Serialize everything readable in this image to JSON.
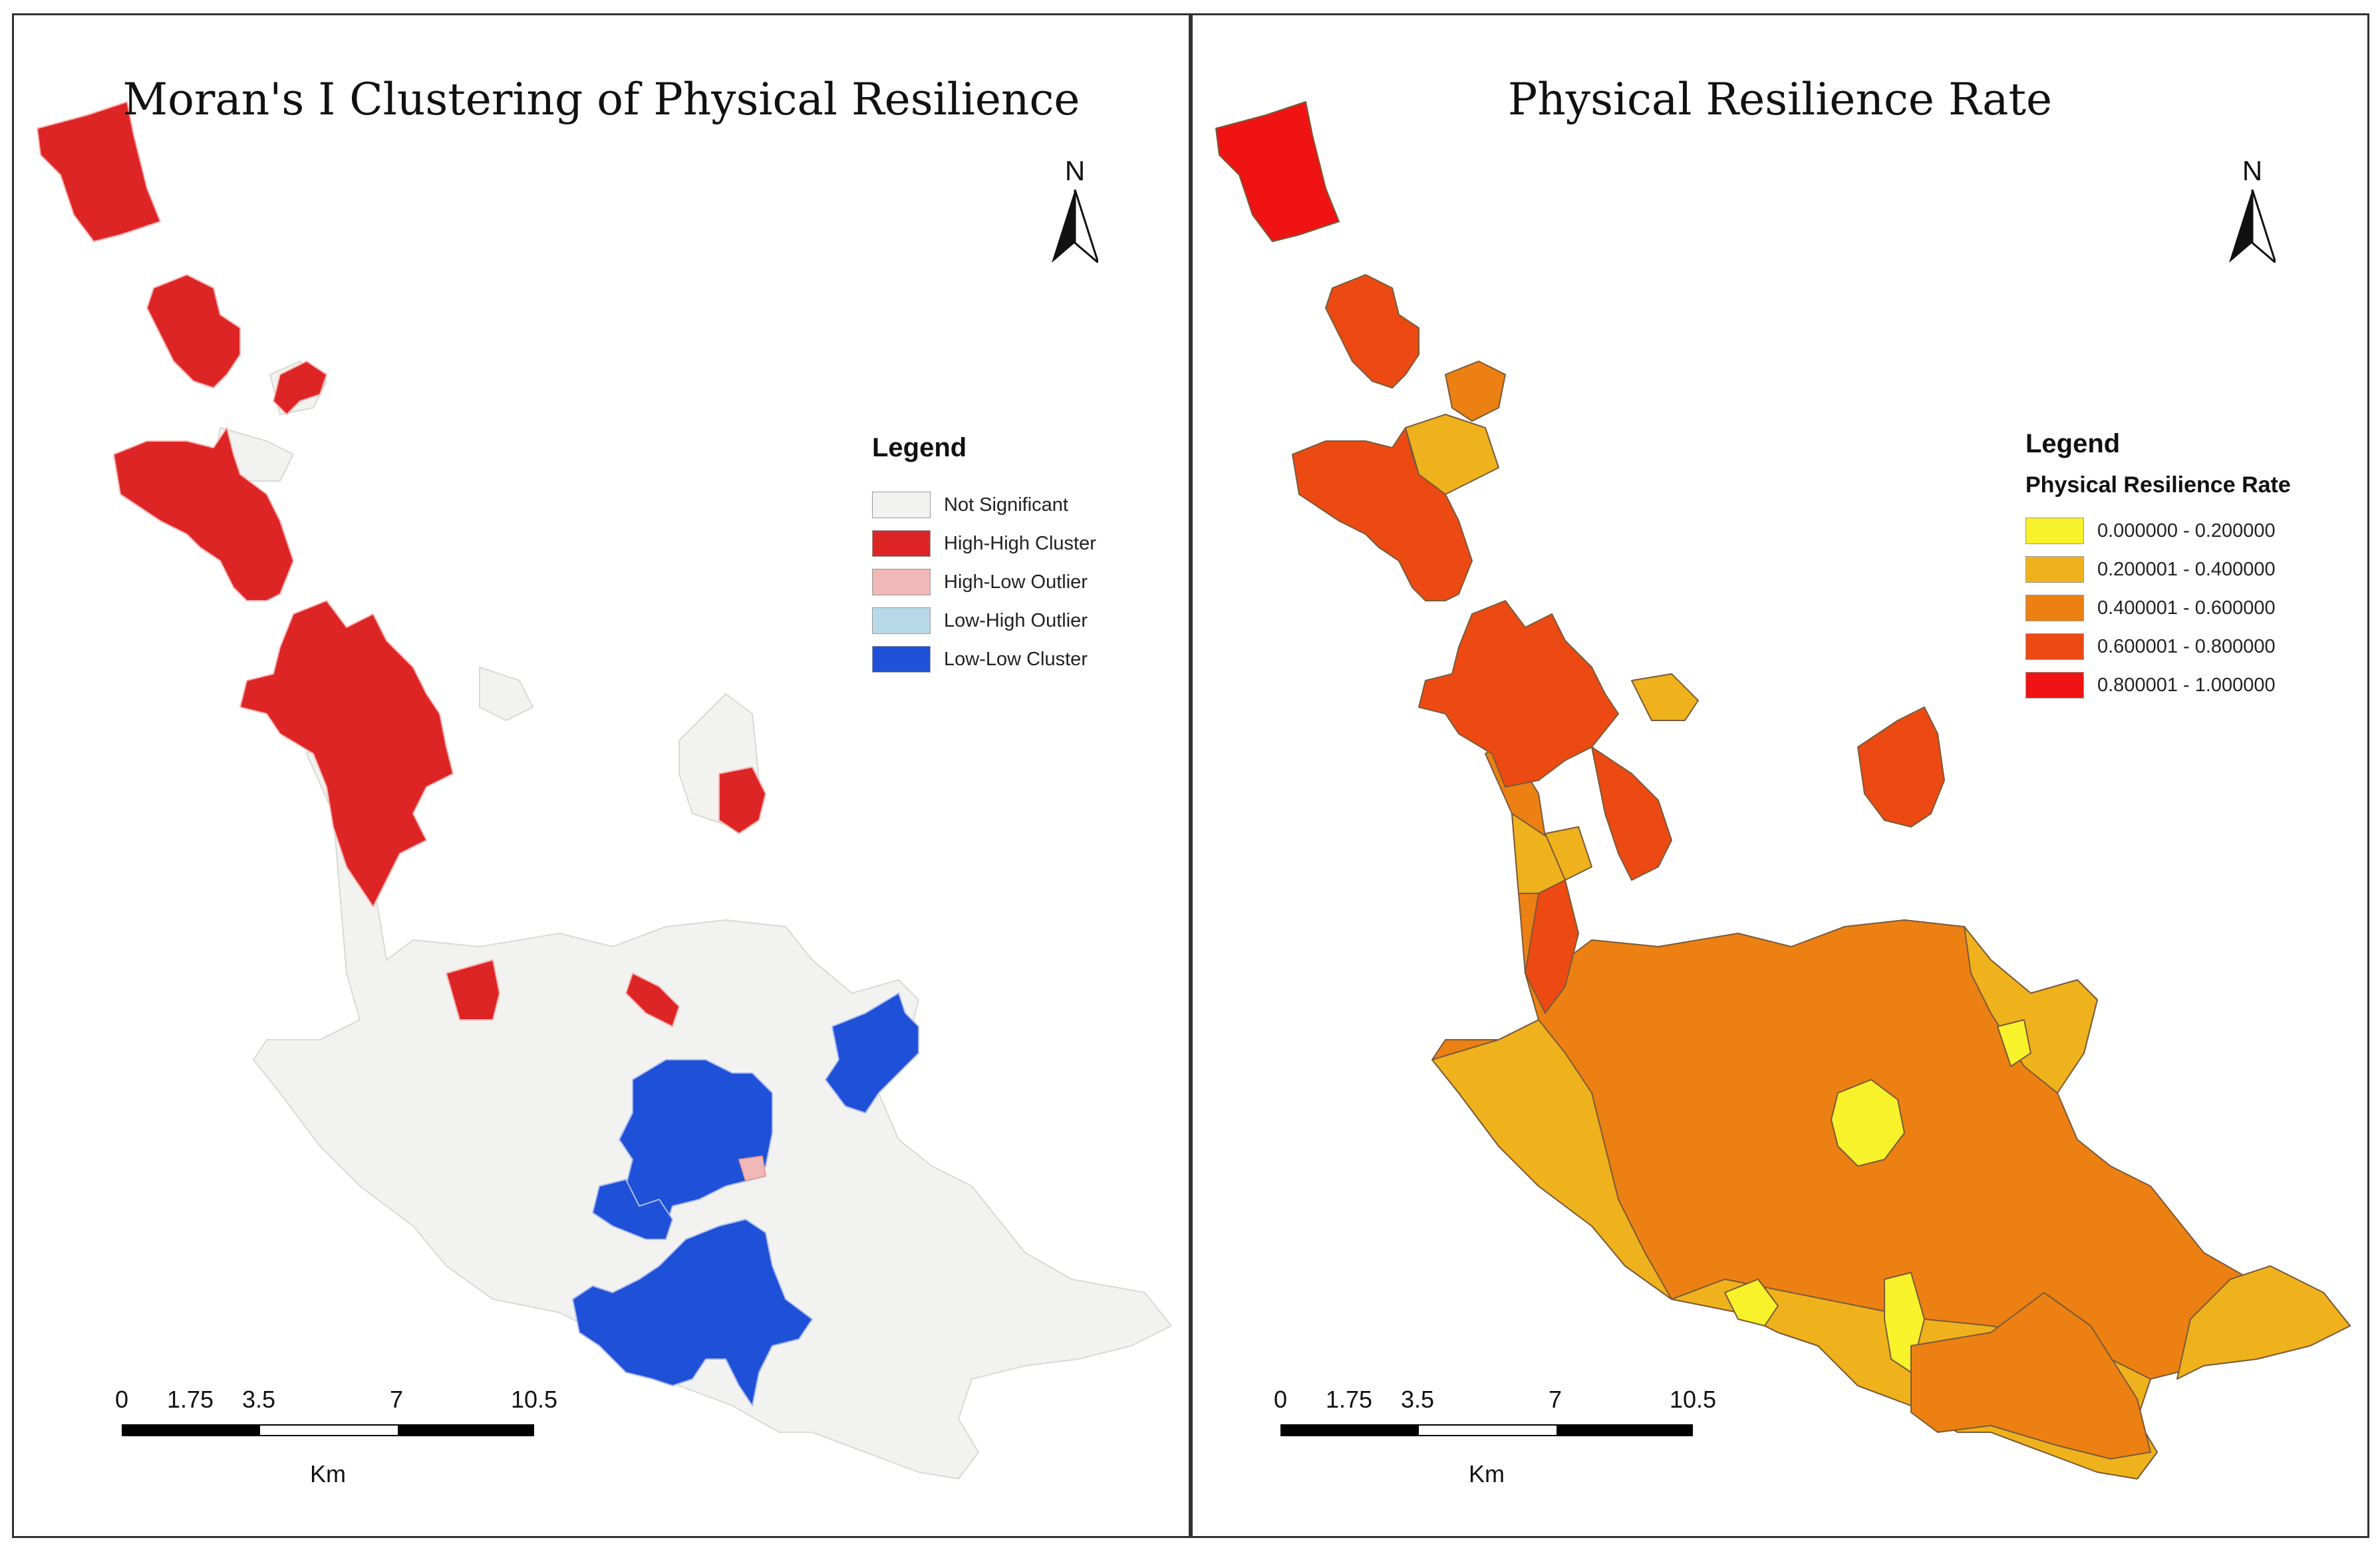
{
  "left_map": {
    "title": "Moran's I Clustering of Physical Resilience",
    "north_label": "N",
    "legend": {
      "title": "Legend",
      "items": [
        {
          "label": "Not Significant",
          "color": "#f2f2f0"
        },
        {
          "label": "High-High Cluster",
          "color": "#de2525"
        },
        {
          "label": "High-Low Outlier",
          "color": "#f0b8b6"
        },
        {
          "label": "Low-High Outlier",
          "color": "#b7d9e8"
        },
        {
          "label": "Low-Low Cluster",
          "color": "#1f50d8"
        }
      ]
    },
    "scale": {
      "ticks": [
        "0",
        "1.75",
        "3.5",
        "7",
        "10.5"
      ],
      "unit": "Km"
    }
  },
  "right_map": {
    "title": "Physical Resilience Rate",
    "north_label": "N",
    "legend": {
      "title": "Legend",
      "subtitle": "Physical Resilience Rate",
      "items": [
        {
          "label": "0.000000 - 0.200000",
          "color": "#f7f22a"
        },
        {
          "label": "0.200001 - 0.400000",
          "color": "#f0b21c"
        },
        {
          "label": "0.400001 - 0.600000",
          "color": "#ec8012"
        },
        {
          "label": "0.600001 - 0.800000",
          "color": "#ec4a12"
        },
        {
          "label": "0.800001 - 1.000000",
          "color": "#f01313"
        }
      ]
    },
    "scale": {
      "ticks": [
        "0",
        "1.75",
        "3.5",
        "7",
        "10.5"
      ],
      "unit": "Km"
    }
  }
}
